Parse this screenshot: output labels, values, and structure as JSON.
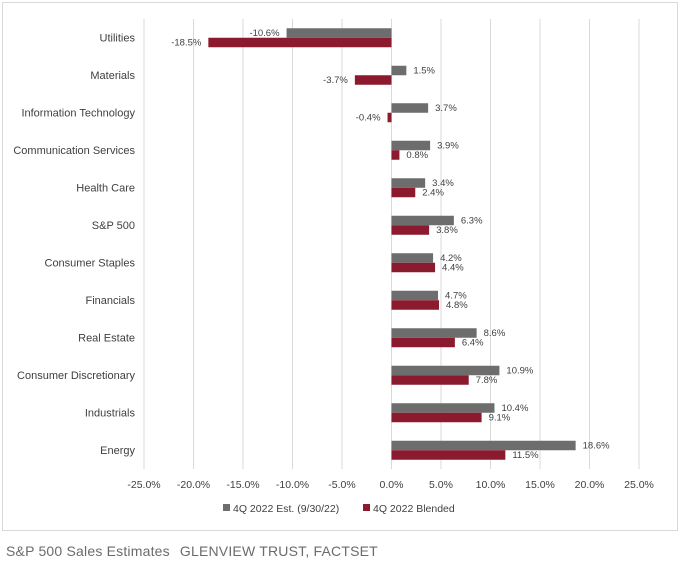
{
  "chart_data": {
    "type": "bar",
    "orientation": "horizontal",
    "title": "",
    "xlabel": "",
    "ylabel": "",
    "categories": [
      "Utilities",
      "Materials",
      "Information Technology",
      "Communication Services",
      "Health Care",
      "S&P 500",
      "Consumer Staples",
      "Financials",
      "Real Estate",
      "Consumer Discretionary",
      "Industrials",
      "Energy"
    ],
    "series": [
      {
        "name": "4Q 2022 Est. (9/30/22)",
        "color": "#6d6d6d",
        "values": [
          -10.6,
          1.5,
          3.7,
          3.9,
          3.4,
          6.3,
          4.2,
          4.7,
          8.6,
          10.9,
          10.4,
          18.6
        ],
        "labels": [
          "-10.6%",
          "1.5%",
          "3.7%",
          "3.9%",
          "3.4%",
          "6.3%",
          "4.2%",
          "4.7%",
          "8.6%",
          "10.9%",
          "10.4%",
          "18.6%"
        ]
      },
      {
        "name": "4Q 2022 Blended",
        "color": "#8b1a2f",
        "values": [
          -18.5,
          -3.7,
          -0.4,
          0.8,
          2.4,
          3.8,
          4.4,
          4.8,
          6.4,
          7.8,
          9.1,
          11.5
        ],
        "labels": [
          "-18.5%",
          "-3.7%",
          "-0.4%",
          "0.8%",
          "2.4%",
          "3.8%",
          "4.4%",
          "4.8%",
          "6.4%",
          "7.8%",
          "9.1%",
          "11.5%"
        ]
      }
    ],
    "xlim": [
      -25,
      25
    ],
    "xticks": [
      -25,
      -20,
      -15,
      -10,
      -5,
      0,
      5,
      10,
      15,
      20,
      25
    ],
    "xtick_labels": [
      "-25.0%",
      "-20.0%",
      "-15.0%",
      "-10.0%",
      "-5.0%",
      "0.0%",
      "5.0%",
      "10.0%",
      "15.0%",
      "20.0%",
      "25.0%"
    ],
    "grid": true,
    "legend_position": "bottom"
  },
  "caption": {
    "title": "S&P 500 Sales Estimates",
    "source": "GLENVIEW TRUST, FACTSET"
  }
}
